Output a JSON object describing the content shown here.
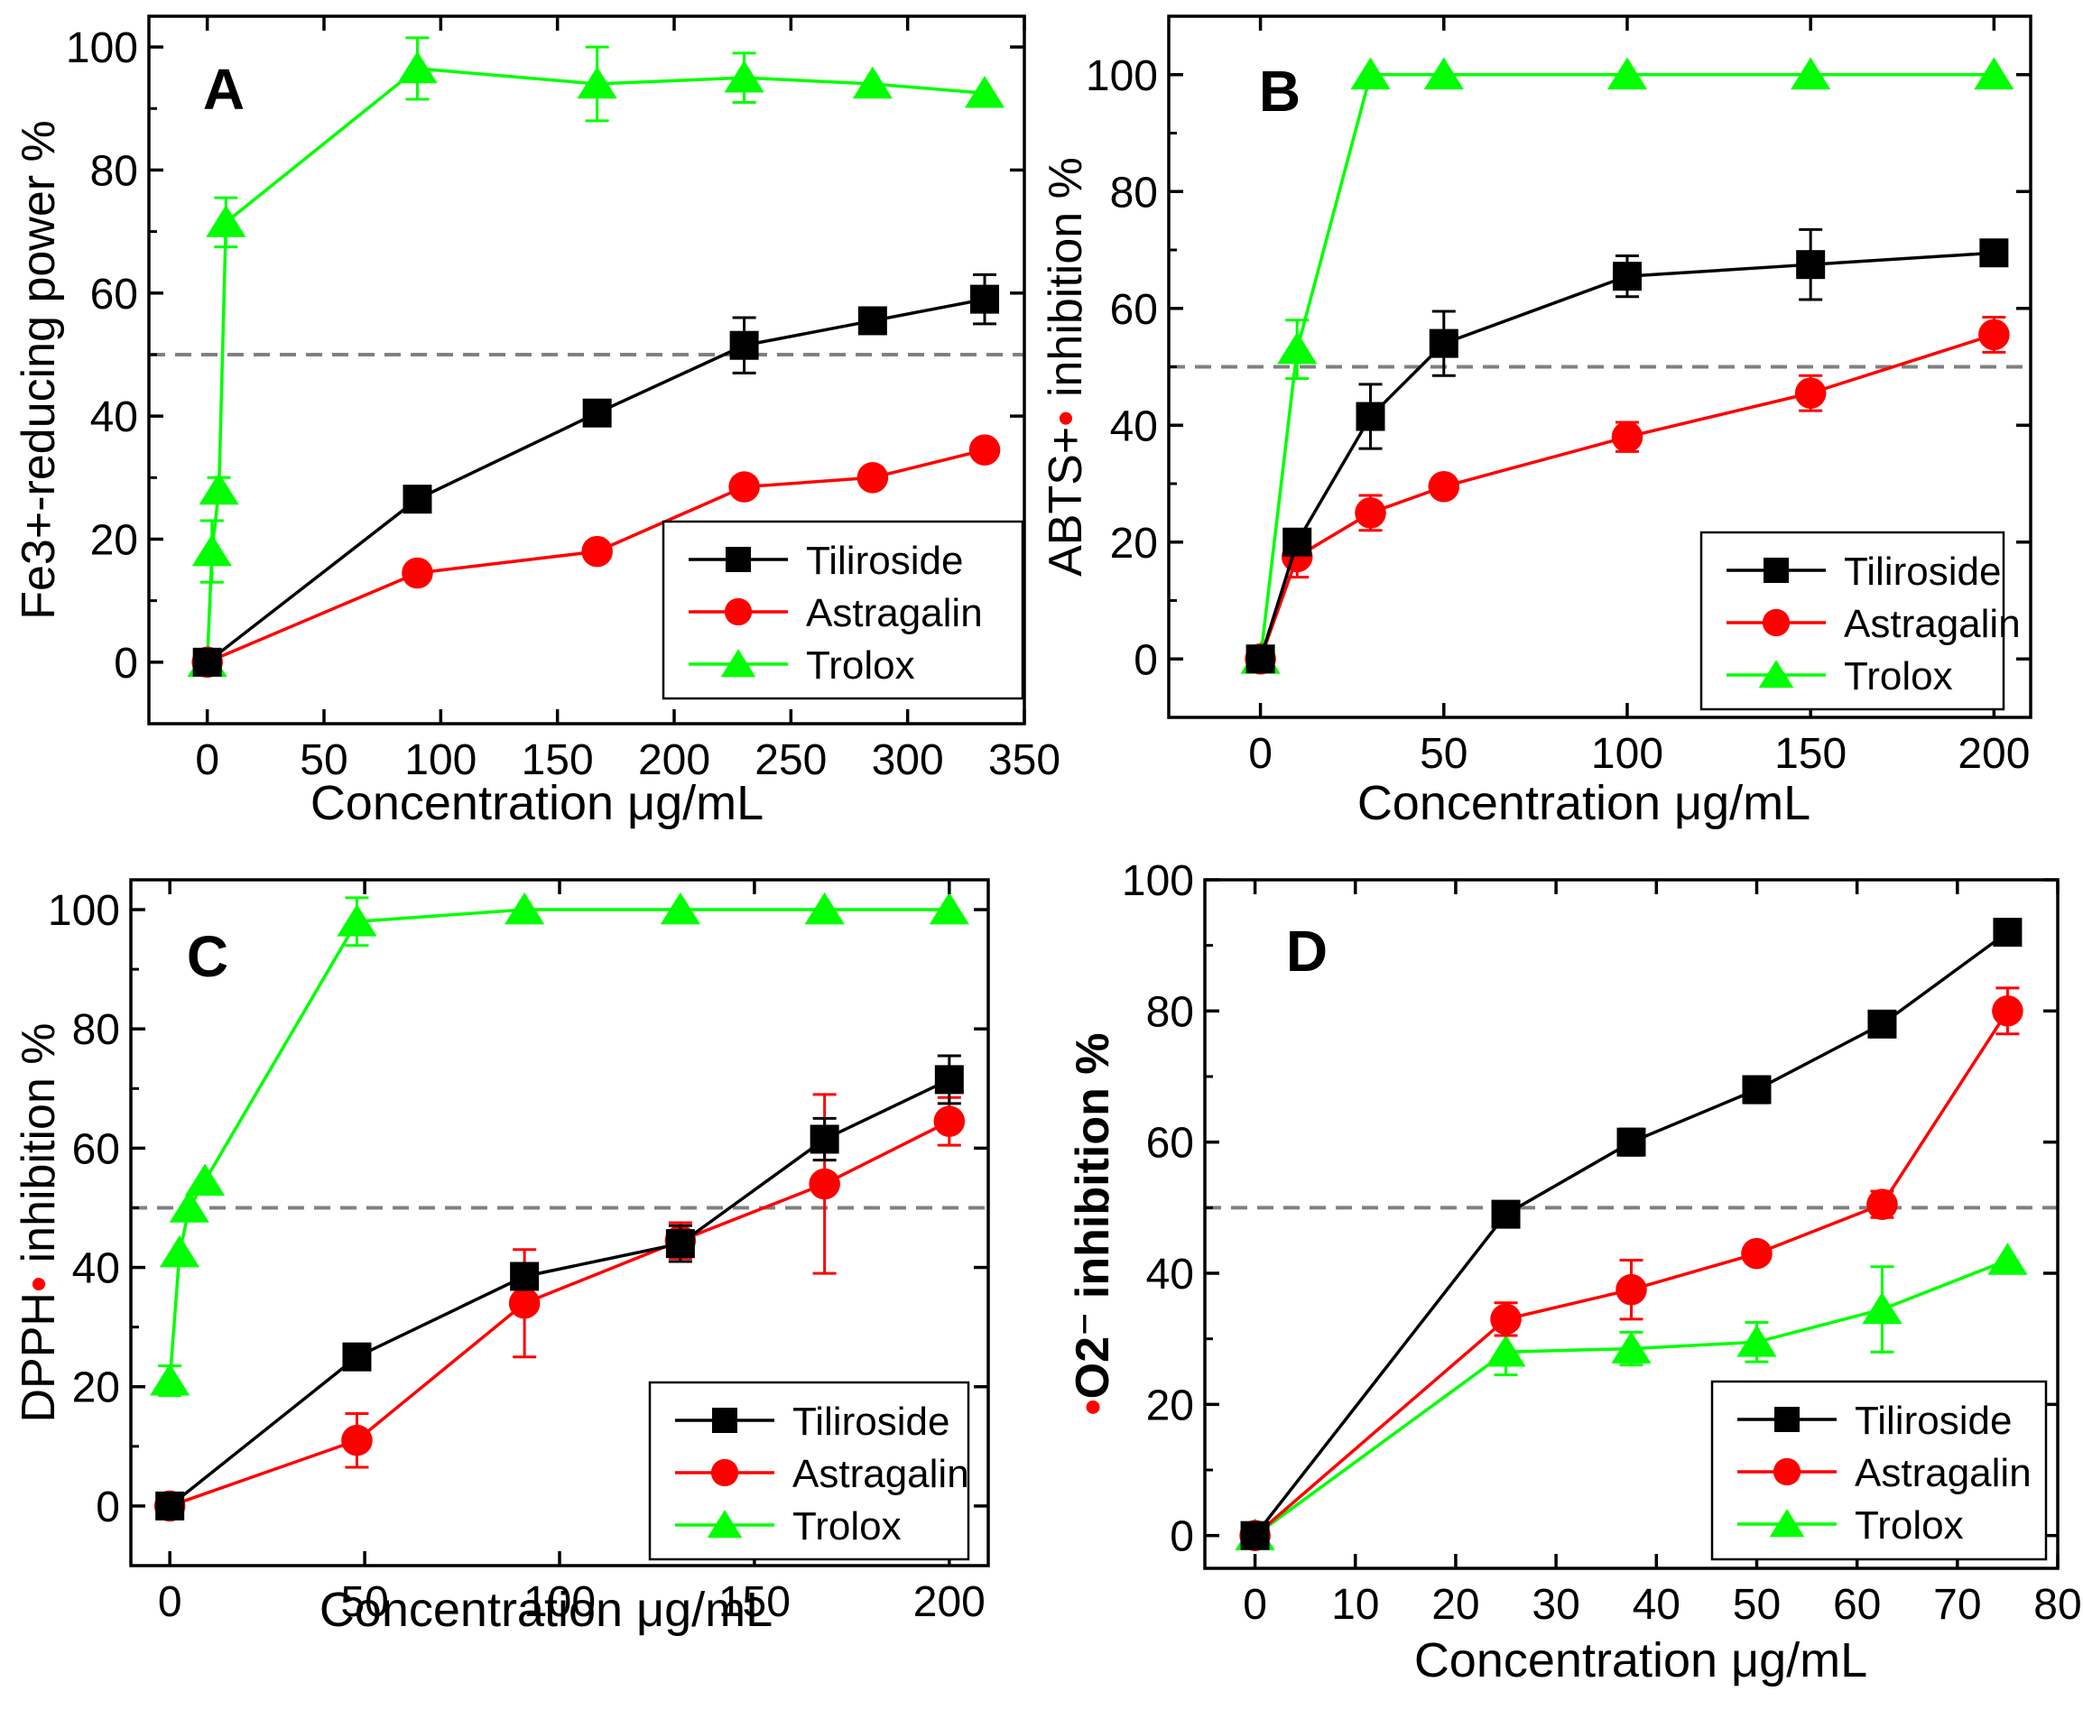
{
  "colors": {
    "tiliroside": "#000000",
    "astragalin": "#ff0000",
    "trolox": "#00ff00",
    "threshold": "#808080",
    "radical_dot": "#ff0000"
  },
  "chart_data": [
    {
      "type": "line",
      "panel_label": "A",
      "xlabel": "Concentration   μg/mL",
      "ylabel": "Fe3+-reducing power %",
      "xlim": [
        -25,
        350
      ],
      "ylim": [
        -10,
        105
      ],
      "xticks": [
        0,
        50,
        100,
        150,
        200,
        250,
        300,
        350
      ],
      "yticks": [
        0,
        20,
        40,
        60,
        80,
        100
      ],
      "threshold": 50,
      "legend_position": "bottom-right",
      "series": [
        {
          "name": "Tiliroside",
          "x": [
            0,
            90,
            167,
            230,
            285,
            333
          ],
          "y": [
            0,
            26.5,
            40.5,
            51.5,
            55.5,
            59
          ],
          "err": [
            1,
            2,
            2,
            4.5,
            2,
            4
          ]
        },
        {
          "name": "Astragalin",
          "x": [
            0,
            90,
            167,
            230,
            285,
            333
          ],
          "y": [
            0,
            14.5,
            18,
            28.5,
            30,
            34.5
          ],
          "err": [
            1,
            1,
            1.5,
            1,
            1,
            1
          ]
        },
        {
          "name": "Trolox",
          "x": [
            0,
            2,
            5,
            8,
            90,
            167,
            230,
            285,
            333
          ],
          "y": [
            0,
            18,
            28,
            71.5,
            96.5,
            94,
            95,
            94,
            92.5
          ],
          "err": [
            1,
            5,
            2,
            4,
            5,
            6,
            4,
            1,
            1
          ]
        }
      ]
    },
    {
      "type": "line",
      "panel_label": "B",
      "xlabel": "Concentration   μg/mL",
      "ylabel": "ABTS+• inhibition %",
      "xlim": [
        -25,
        210
      ],
      "ylim": [
        -10,
        110
      ],
      "xticks": [
        0,
        50,
        100,
        150,
        200
      ],
      "yticks": [
        0,
        20,
        40,
        60,
        80,
        100
      ],
      "threshold": 50,
      "legend_position": "bottom-right",
      "series": [
        {
          "name": "Tiliroside",
          "x": [
            0,
            10,
            30,
            50,
            100,
            150,
            200
          ],
          "y": [
            0,
            20,
            41.5,
            54,
            65.5,
            67.5,
            69.5
          ],
          "err": [
            1,
            2,
            5.5,
            5.5,
            3.5,
            6,
            2
          ]
        },
        {
          "name": "Astragalin",
          "x": [
            0,
            10,
            30,
            50,
            100,
            150,
            200
          ],
          "y": [
            0,
            17.5,
            25,
            29.5,
            38,
            45.5,
            55.5
          ],
          "err": [
            1,
            3.5,
            3,
            1.5,
            2.5,
            3,
            3
          ]
        },
        {
          "name": "Trolox",
          "x": [
            0,
            10,
            30,
            50,
            100,
            150,
            200
          ],
          "y": [
            0,
            53,
            100,
            100,
            100,
            100,
            100
          ],
          "err": [
            1,
            5,
            1,
            1,
            1,
            1,
            1
          ]
        }
      ]
    },
    {
      "type": "line",
      "panel_label": "C",
      "xlabel": "Concentration   μg/mL",
      "ylabel": "DPPH•  inhibition %",
      "xlim": [
        -10,
        210
      ],
      "ylim": [
        -10,
        105
      ],
      "xticks": [
        0,
        50,
        100,
        150,
        200
      ],
      "yticks": [
        0,
        20,
        40,
        60,
        80,
        100
      ],
      "threshold": 50,
      "legend_position": "bottom-right",
      "series": [
        {
          "name": "Tiliroside",
          "x": [
            0,
            48,
            91,
            131,
            168,
            200
          ],
          "y": [
            0,
            25,
            38.5,
            44,
            61.5,
            71.5
          ],
          "err": [
            1,
            1,
            2,
            3,
            3.5,
            4
          ]
        },
        {
          "name": "Astragalin",
          "x": [
            0,
            48,
            91,
            131,
            168,
            200
          ],
          "y": [
            0,
            11,
            34,
            44.5,
            54,
            64.5
          ],
          "err": [
            1,
            4.5,
            9,
            3,
            15,
            4
          ]
        },
        {
          "name": "Trolox",
          "x": [
            0,
            2.5,
            5,
            9,
            48,
            91,
            131,
            168,
            200
          ],
          "y": [
            21,
            42.5,
            50,
            54.5,
            98,
            100,
            100,
            100,
            100
          ],
          "err": [
            2.5,
            1,
            1,
            1,
            4,
            1,
            1,
            1,
            1
          ]
        }
      ]
    },
    {
      "type": "line",
      "panel_label": "D",
      "xlabel": "Concentration   μg/mL",
      "ylabel": "•O2⁻ inhibition %",
      "xlim": [
        -5,
        80
      ],
      "ylim": [
        -5,
        100
      ],
      "xticks": [
        0,
        10,
        20,
        30,
        40,
        50,
        60,
        70,
        80
      ],
      "yticks": [
        0,
        20,
        40,
        60,
        80,
        100
      ],
      "threshold": 50,
      "legend_position": "bottom-right",
      "series": [
        {
          "name": "Tiliroside",
          "x": [
            0,
            25,
            37.5,
            50,
            62.5,
            75
          ],
          "y": [
            0,
            49,
            60,
            68,
            78,
            92
          ],
          "err": [
            1,
            1,
            2,
            2,
            1,
            1
          ]
        },
        {
          "name": "Astragalin",
          "x": [
            0,
            25,
            37.5,
            50,
            62.5,
            75
          ],
          "y": [
            0,
            33,
            37.5,
            43,
            50.5,
            80
          ],
          "err": [
            1,
            2.5,
            4.5,
            1,
            2,
            3.5
          ]
        },
        {
          "name": "Trolox",
          "x": [
            0,
            25,
            37.5,
            50,
            62.5,
            75
          ],
          "y": [
            0,
            28,
            28.5,
            29.5,
            34.5,
            42
          ],
          "err": [
            1,
            3.5,
            2.5,
            3,
            6.5,
            1
          ]
        }
      ]
    }
  ]
}
